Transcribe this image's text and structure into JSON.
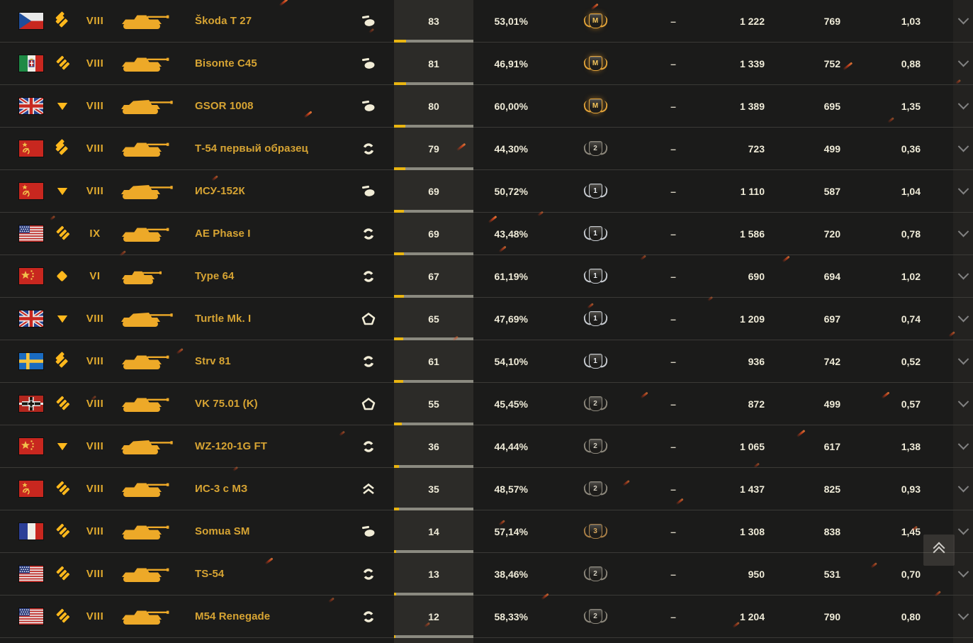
{
  "table": {
    "rows": [
      {
        "nation": "czechoslovakia",
        "vehicle_class": "medium",
        "tier": "VIII",
        "name": "Škoda T 27",
        "status_icon": "tank-with-flag-icon",
        "battles": "83",
        "win_rate": "53,01%",
        "mastery": "M",
        "moe": "–",
        "avg_damage": "1 222",
        "avg_experience": "769",
        "ratio": "1,03"
      },
      {
        "nation": "italy",
        "vehicle_class": "heavy",
        "tier": "VIII",
        "name": "Bisonte C45",
        "status_icon": "tank-with-flag-icon",
        "battles": "81",
        "win_rate": "46,91%",
        "mastery": "M",
        "moe": "–",
        "avg_damage": "1 339",
        "avg_experience": "752",
        "ratio": "0,88"
      },
      {
        "nation": "uk",
        "vehicle_class": "td",
        "tier": "VIII",
        "name": "GSOR 1008",
        "status_icon": "tank-with-flag-icon",
        "battles": "80",
        "win_rate": "60,00%",
        "mastery": "M",
        "moe": "–",
        "avg_damage": "1 389",
        "avg_experience": "695",
        "ratio": "1,35"
      },
      {
        "nation": "ussr",
        "vehicle_class": "medium",
        "tier": "VIII",
        "name": "Т-54 первый образец",
        "status_icon": "cycle-icon",
        "battles": "79",
        "win_rate": "44,30%",
        "mastery": "2",
        "moe": "–",
        "avg_damage": "723",
        "avg_experience": "499",
        "ratio": "0,36"
      },
      {
        "nation": "ussr",
        "vehicle_class": "td",
        "tier": "VIII",
        "name": "ИСУ-152К",
        "status_icon": "tank-with-flag-icon",
        "battles": "69",
        "win_rate": "50,72%",
        "mastery": "1",
        "moe": "–",
        "avg_damage": "1 110",
        "avg_experience": "587",
        "ratio": "1,04"
      },
      {
        "nation": "usa",
        "vehicle_class": "heavy",
        "tier": "IX",
        "name": "AE Phase I",
        "status_icon": "cycle-icon",
        "battles": "69",
        "win_rate": "43,48%",
        "mastery": "1",
        "moe": "–",
        "avg_damage": "1 586",
        "avg_experience": "720",
        "ratio": "0,78"
      },
      {
        "nation": "china",
        "vehicle_class": "light",
        "tier": "VI",
        "name": "Type 64",
        "status_icon": "cycle-icon",
        "battles": "67",
        "win_rate": "61,19%",
        "mastery": "1",
        "moe": "–",
        "avg_damage": "690",
        "avg_experience": "694",
        "ratio": "1,02"
      },
      {
        "nation": "uk",
        "vehicle_class": "td",
        "tier": "VIII",
        "name": "Turtle Mk. I",
        "status_icon": "pentagon-icon",
        "battles": "65",
        "win_rate": "47,69%",
        "mastery": "1",
        "moe": "–",
        "avg_damage": "1 209",
        "avg_experience": "697",
        "ratio": "0,74"
      },
      {
        "nation": "sweden",
        "vehicle_class": "medium",
        "tier": "VIII",
        "name": "Strv 81",
        "status_icon": "cycle-icon",
        "battles": "61",
        "win_rate": "54,10%",
        "mastery": "1",
        "moe": "–",
        "avg_damage": "936",
        "avg_experience": "742",
        "ratio": "0,52"
      },
      {
        "nation": "germany",
        "vehicle_class": "heavy",
        "tier": "VIII",
        "name": "VK 75.01 (K)",
        "status_icon": "pentagon-icon",
        "battles": "55",
        "win_rate": "45,45%",
        "mastery": "2",
        "moe": "–",
        "avg_damage": "872",
        "avg_experience": "499",
        "ratio": "0,57"
      },
      {
        "nation": "china",
        "vehicle_class": "td",
        "tier": "VIII",
        "name": "WZ-120-1G FT",
        "status_icon": "cycle-icon",
        "battles": "36",
        "win_rate": "44,44%",
        "mastery": "2",
        "moe": "–",
        "avg_damage": "1 065",
        "avg_experience": "617",
        "ratio": "1,38"
      },
      {
        "nation": "ussr",
        "vehicle_class": "heavy",
        "tier": "VIII",
        "name": "ИС-3 с МЗ",
        "status_icon": "double-chevron-up-icon",
        "battles": "35",
        "win_rate": "48,57%",
        "mastery": "2",
        "moe": "–",
        "avg_damage": "1 437",
        "avg_experience": "825",
        "ratio": "0,93"
      },
      {
        "nation": "france",
        "vehicle_class": "heavy",
        "tier": "VIII",
        "name": "Somua SM",
        "status_icon": "tank-with-flag-icon",
        "battles": "14",
        "win_rate": "57,14%",
        "mastery": "3",
        "moe": "–",
        "avg_damage": "1 308",
        "avg_experience": "838",
        "ratio": "1,45"
      },
      {
        "nation": "usa",
        "vehicle_class": "heavy",
        "tier": "VIII",
        "name": "TS-54",
        "status_icon": "cycle-icon",
        "battles": "13",
        "win_rate": "38,46%",
        "mastery": "2",
        "moe": "–",
        "avg_damage": "950",
        "avg_experience": "531",
        "ratio": "0,70"
      },
      {
        "nation": "usa",
        "vehicle_class": "heavy",
        "tier": "VIII",
        "name": "M54 Renegade",
        "status_icon": "cycle-icon",
        "battles": "12",
        "win_rate": "58,33%",
        "mastery": "2",
        "moe": "–",
        "avg_damage": "1 204",
        "avg_experience": "790",
        "ratio": "0,80"
      }
    ]
  },
  "scroll_top_button": {
    "icon": "double-chevron-up-icon"
  },
  "colors": {
    "accent_gold": "#ffb81c",
    "name_gold": "#d7a433",
    "row_bg": "#1b1b1a",
    "battles_col_bg": "#2c2b28",
    "bar_yellow": "#e9b511",
    "bar_gray": "#8b8a80",
    "text_light": "#efebd8"
  }
}
